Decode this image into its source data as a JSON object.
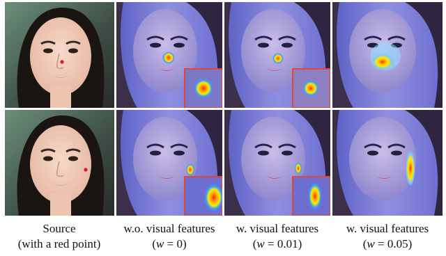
{
  "figure": {
    "captions": [
      {
        "line1": "Source",
        "line2_prefix": "(with a red point)",
        "w_value": null
      },
      {
        "line1": "w.o. visual features",
        "line2_prefix": "(",
        "w_value": "0"
      },
      {
        "line1": "w. visual features",
        "line2_prefix": "(",
        "w_value": "0.01"
      },
      {
        "line1": "w. visual features",
        "line2_prefix": "(",
        "w_value": "0.05"
      }
    ],
    "w_symbol": "w",
    "colors": {
      "marker_red": "#e4141b",
      "inset_border": "#e0453a",
      "heat_hot": "#ff2a00",
      "heat_warm": "#ffe800",
      "heat_cool": "#35a0ff",
      "overlay_blue": "#6f73d9"
    },
    "rows": [
      {
        "marker_location": "nose tip"
      },
      {
        "marker_location": "cheek"
      }
    ]
  }
}
